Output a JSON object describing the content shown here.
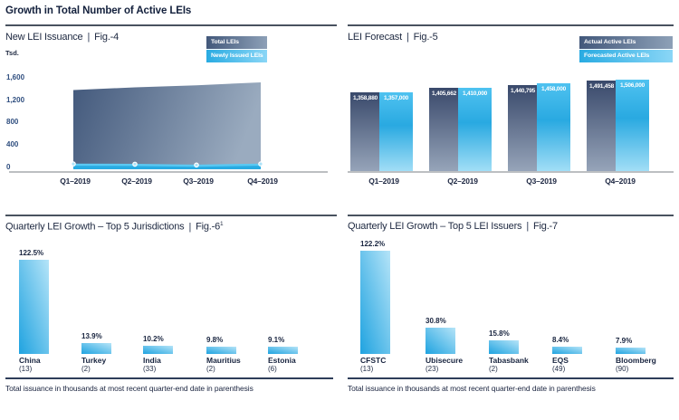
{
  "header": {
    "title": "Growth in Total Number of Active LEIs"
  },
  "footnote": "Total issuance in thousands at most recent quarter-end date in parenthesis",
  "colors": {
    "accent_blue": "#29abe2",
    "light_blue": "#8ad6f6",
    "dark_slate_blue": "#42587b",
    "slate_light": "#96a4b9",
    "navy_text": "#1b2540",
    "ytick_blue": "#2f4e7f",
    "axis_grey": "#bcbfc2",
    "divider_dark": "#49525f"
  },
  "panels": {
    "fig4": {
      "title": "New LEI Issuance",
      "separator": "|",
      "fig_label": "Fig.-4",
      "unit": "Tsd.",
      "legend": [
        "Total LEIs",
        "Newly Issued LEIs"
      ]
    },
    "fig5": {
      "title": "LEI Forecast",
      "separator": "|",
      "fig_label": "Fig.-5",
      "legend": [
        "Actual Active LEIs",
        "Forecasted Active LEIs"
      ]
    },
    "fig6": {
      "title": "Quarterly LEI Growth – Top 5 Jurisdictions",
      "separator": "|",
      "fig_label": "Fig.-6",
      "fig_superscript": "1"
    },
    "fig7": {
      "title": "Quarterly LEI Growth – Top 5 LEI Issuers",
      "separator": "|",
      "fig_label": "Fig.-7"
    }
  },
  "chart_data": [
    {
      "id": "fig4",
      "type": "area",
      "title": "New LEI Issuance",
      "ylabel": "Tsd.",
      "x": [
        "Q1–2019",
        "Q2–2019",
        "Q3–2019",
        "Q4–2019"
      ],
      "y_ticks": [
        "1,600",
        "1,200",
        "800",
        "400",
        "0"
      ],
      "ylim": [
        0,
        1600
      ],
      "grid": false,
      "legend_position": "top-right",
      "series": [
        {
          "name": "Total LEIs",
          "values": [
            1358.9,
            1405.7,
            1440.8,
            1491.5
          ]
        },
        {
          "name": "Newly Issued LEIs",
          "values": [
            85,
            80,
            65,
            85
          ]
        }
      ]
    },
    {
      "id": "fig5",
      "type": "bar",
      "title": "LEI Forecast",
      "x": [
        "Q1–2019",
        "Q2–2019",
        "Q3–2019",
        "Q4–2019"
      ],
      "ylim": [
        400000,
        1550000
      ],
      "grid": false,
      "legend_position": "top-right",
      "series": [
        {
          "name": "Actual Active LEIs",
          "values": [
            1358880,
            1405662,
            1440795,
            1491458
          ],
          "labels": [
            "1,358,880",
            "1,405,662",
            "1,440,795",
            "1,491,458"
          ]
        },
        {
          "name": "Forecasted Active LEIs",
          "values": [
            1357000,
            1410000,
            1458000,
            1506000
          ],
          "labels": [
            "1,357,000",
            "1,410,000",
            "1,458,000",
            "1,506,000"
          ]
        }
      ]
    },
    {
      "id": "fig6",
      "type": "bar",
      "title": "Quarterly LEI Growth – Top 5 Jurisdictions",
      "categories": [
        "China",
        "Turkey",
        "India",
        "Mauritius",
        "Estonia"
      ],
      "values": [
        122.5,
        13.9,
        10.2,
        9.8,
        9.1
      ],
      "value_labels": [
        "122.5%",
        "13.9%",
        "10.2%",
        "9.8%",
        "9.1%"
      ],
      "totals": [
        "(13)",
        "(2)",
        "(33)",
        "(2)",
        "(6)"
      ],
      "grid": false
    },
    {
      "id": "fig7",
      "type": "bar",
      "title": "Quarterly LEI Growth – Top 5 LEI Issuers",
      "categories": [
        "CFSTC",
        "Ubisecure",
        "Tabasbank",
        "EQS",
        "Bloomberg"
      ],
      "values": [
        122.2,
        30.8,
        15.8,
        8.4,
        7.9
      ],
      "value_labels": [
        "122.2%",
        "30.8%",
        "15.8%",
        "8.4%",
        "7.9%"
      ],
      "totals": [
        "(13)",
        "(23)",
        "(2)",
        "(49)",
        "(90)"
      ],
      "grid": false
    }
  ]
}
